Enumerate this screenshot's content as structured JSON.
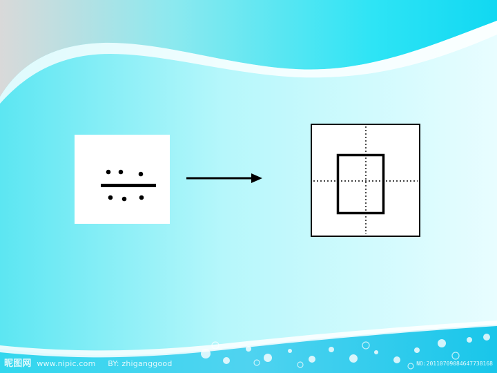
{
  "watermark": {
    "logo": "昵图网",
    "site": "www.nipic.com",
    "author": "BY: zhiganggood",
    "id": "NO:20110709084647738168"
  }
}
